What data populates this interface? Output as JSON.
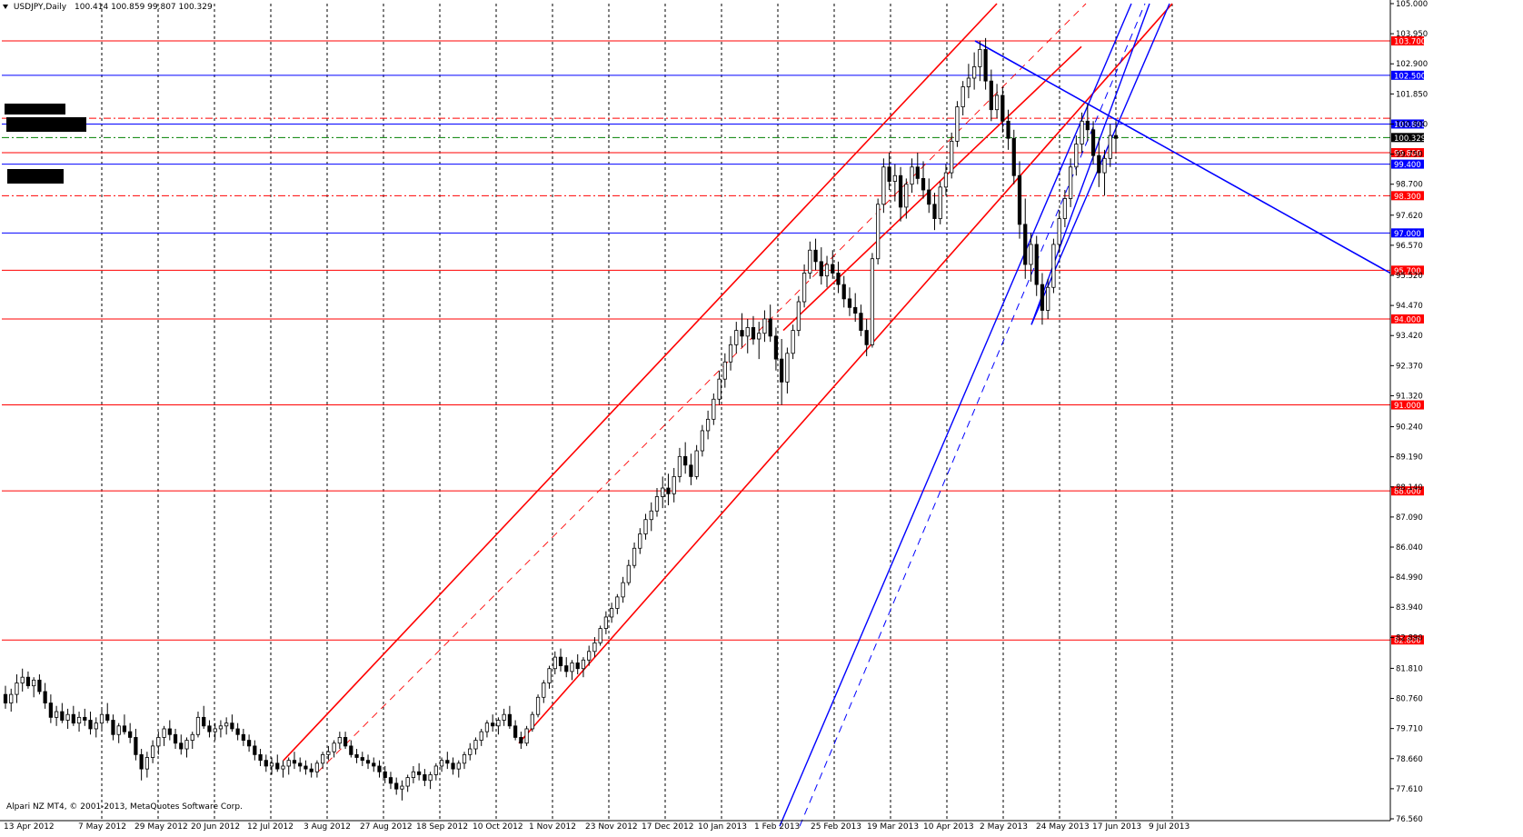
{
  "header": {
    "symbol_timeframe": "USDJPY,Daily",
    "ohlc": "100.414 100.859 99.807 100.329"
  },
  "copyright": "Alpari NZ MT4, © 2001-2013, MetaQuotes Software Corp.",
  "colors": {
    "background": "#ffffff",
    "red": "#ff0000",
    "blue": "#0000ff",
    "candle": "#000000",
    "grid": "#000000"
  },
  "chart_data": {
    "type": "candlestick",
    "symbol": "USDJPY",
    "timeframe": "Daily",
    "ylim": [
      76.56,
      105.0
    ],
    "y_tick_labels": [
      "105.000",
      "103.950",
      "102.900",
      "101.850",
      "100.800",
      "99.750",
      "98.700",
      "97.620",
      "96.570",
      "95.520",
      "94.470",
      "93.420",
      "92.370",
      "91.320",
      "90.240",
      "89.190",
      "88.140",
      "87.090",
      "86.040",
      "84.990",
      "83.940",
      "82.890",
      "81.810",
      "80.760",
      "79.710",
      "78.660",
      "77.610",
      "76.560"
    ],
    "x_tick_labels": [
      "13 Apr 2012",
      "7 May 2012",
      "29 May 2012",
      "20 Jun 2012",
      "12 Jul 2012",
      "3 Aug 2012",
      "27 Aug 2012",
      "18 Sep 2012",
      "10 Oct 2012",
      "1 Nov 2012",
      "23 Nov 2012",
      "17 Dec 2012",
      "10 Jan 2013",
      "1 Feb 2013",
      "25 Feb 2013",
      "19 Mar 2013",
      "10 Apr 2013",
      "2 May 2013",
      "24 May 2013",
      "17 Jun 2013",
      "9 Jul 2013"
    ],
    "current_price": 100.329,
    "horizontal_levels": [
      {
        "price": 103.7,
        "label": "103.700",
        "color": "red",
        "style": "solid"
      },
      {
        "price": 102.5,
        "label": "102.500",
        "color": "blue",
        "style": "solid"
      },
      {
        "price": 100.8,
        "label": "100.800",
        "color": "blue",
        "style": "solid"
      },
      {
        "price": 99.8,
        "label": "99.800",
        "color": "red",
        "style": "solid"
      },
      {
        "price": 99.4,
        "label": "99.400",
        "color": "blue",
        "style": "solid"
      },
      {
        "price": 98.3,
        "label": "98.300",
        "color": "red",
        "style": "dashdot"
      },
      {
        "price": 97.0,
        "label": "97.000",
        "color": "blue",
        "style": "solid"
      },
      {
        "price": 95.7,
        "label": "95.700",
        "color": "red",
        "style": "solid"
      },
      {
        "price": 94.0,
        "label": "94.000",
        "color": "red",
        "style": "solid"
      },
      {
        "price": 91.0,
        "label": "91.000",
        "color": "red",
        "style": "solid"
      },
      {
        "price": 88.0,
        "label": "88.000",
        "color": "red",
        "style": "solid"
      },
      {
        "price": 82.8,
        "label": "82.800",
        "color": "red",
        "style": "solid"
      }
    ],
    "unlabeled_levels": [
      {
        "price": 101.0,
        "color": "red",
        "style": "dashdot"
      },
      {
        "price": 100.329,
        "color": "green",
        "style": "dashdot"
      }
    ],
    "trend_lines": [
      {
        "color": "red",
        "style": "solid",
        "from": [
          0.0,
          77.0
        ],
        "to": [
          1.0,
          104.0
        ]
      },
      {
        "color": "red",
        "style": "solid",
        "from": [
          0.0,
          78.5
        ],
        "to": [
          1.0,
          105.0
        ]
      }
    ],
    "candles_ohlc": [
      [
        80.9,
        81.2,
        80.4,
        80.6
      ],
      [
        80.6,
        81.1,
        80.3,
        80.9
      ],
      [
        80.9,
        81.6,
        80.6,
        81.3
      ],
      [
        81.3,
        81.8,
        81.0,
        81.5
      ],
      [
        81.5,
        81.7,
        81.1,
        81.2
      ],
      [
        81.2,
        81.5,
        80.8,
        81.4
      ],
      [
        81.4,
        81.6,
        80.9,
        81.0
      ],
      [
        81.0,
        81.3,
        80.4,
        80.6
      ],
      [
        80.6,
        80.9,
        79.9,
        80.1
      ],
      [
        80.1,
        80.5,
        79.8,
        80.3
      ],
      [
        80.3,
        80.6,
        79.9,
        80.0
      ],
      [
        80.0,
        80.4,
        79.7,
        80.2
      ],
      [
        80.2,
        80.5,
        79.8,
        79.9
      ],
      [
        79.9,
        80.3,
        79.6,
        80.1
      ],
      [
        80.1,
        80.4,
        79.8,
        80.0
      ],
      [
        80.0,
        80.3,
        79.5,
        79.7
      ],
      [
        79.7,
        80.1,
        79.4,
        79.9
      ],
      [
        79.9,
        80.4,
        79.7,
        80.2
      ],
      [
        80.2,
        80.6,
        79.9,
        80.0
      ],
      [
        80.0,
        80.2,
        79.3,
        79.5
      ],
      [
        79.5,
        79.9,
        79.2,
        79.8
      ],
      [
        79.8,
        80.2,
        79.5,
        79.6
      ],
      [
        79.6,
        79.9,
        79.2,
        79.4
      ],
      [
        79.4,
        79.7,
        78.6,
        78.8
      ],
      [
        78.8,
        79.0,
        77.9,
        78.3
      ],
      [
        78.3,
        78.9,
        78.0,
        78.7
      ],
      [
        78.7,
        79.3,
        78.5,
        79.1
      ],
      [
        79.1,
        79.6,
        78.8,
        79.4
      ],
      [
        79.4,
        79.8,
        79.1,
        79.7
      ],
      [
        79.7,
        80.0,
        79.3,
        79.5
      ],
      [
        79.5,
        79.7,
        79.0,
        79.2
      ],
      [
        79.2,
        79.5,
        78.8,
        79.0
      ],
      [
        79.0,
        79.4,
        78.7,
        79.3
      ],
      [
        79.3,
        79.6,
        79.0,
        79.5
      ],
      [
        79.5,
        80.3,
        79.4,
        80.1
      ],
      [
        80.1,
        80.5,
        79.7,
        79.8
      ],
      [
        79.8,
        80.0,
        79.4,
        79.6
      ],
      [
        79.6,
        79.9,
        79.3,
        79.7
      ],
      [
        79.7,
        80.0,
        79.4,
        79.8
      ],
      [
        79.8,
        80.1,
        79.5,
        79.9
      ],
      [
        79.9,
        80.2,
        79.6,
        79.7
      ],
      [
        79.7,
        79.9,
        79.3,
        79.5
      ],
      [
        79.5,
        79.7,
        79.1,
        79.3
      ],
      [
        79.3,
        79.5,
        78.9,
        79.1
      ],
      [
        79.1,
        79.3,
        78.6,
        78.8
      ],
      [
        78.8,
        79.0,
        78.4,
        78.6
      ],
      [
        78.6,
        78.8,
        78.2,
        78.4
      ],
      [
        78.4,
        78.7,
        78.1,
        78.5
      ],
      [
        78.5,
        78.8,
        78.2,
        78.3
      ],
      [
        78.3,
        78.6,
        78.0,
        78.4
      ],
      [
        78.4,
        78.7,
        78.1,
        78.6
      ],
      [
        78.6,
        78.9,
        78.3,
        78.5
      ],
      [
        78.5,
        78.7,
        78.2,
        78.4
      ],
      [
        78.4,
        78.6,
        78.1,
        78.3
      ],
      [
        78.3,
        78.5,
        78.0,
        78.2
      ],
      [
        78.2,
        78.6,
        78.0,
        78.5
      ],
      [
        78.5,
        78.9,
        78.3,
        78.8
      ],
      [
        78.8,
        79.1,
        78.6,
        78.9
      ],
      [
        78.9,
        79.3,
        78.7,
        79.2
      ],
      [
        79.2,
        79.6,
        79.0,
        79.4
      ],
      [
        79.4,
        79.6,
        79.0,
        79.1
      ],
      [
        79.1,
        79.3,
        78.7,
        78.8
      ],
      [
        78.8,
        79.0,
        78.5,
        78.7
      ],
      [
        78.7,
        78.9,
        78.4,
        78.6
      ],
      [
        78.6,
        78.8,
        78.3,
        78.5
      ],
      [
        78.5,
        78.7,
        78.2,
        78.4
      ],
      [
        78.4,
        78.6,
        78.0,
        78.2
      ],
      [
        78.2,
        78.4,
        77.8,
        78.0
      ],
      [
        78.0,
        78.2,
        77.6,
        77.8
      ],
      [
        77.8,
        78.0,
        77.4,
        77.6
      ],
      [
        77.6,
        77.9,
        77.2,
        77.7
      ],
      [
        77.7,
        78.1,
        77.5,
        78.0
      ],
      [
        78.0,
        78.4,
        77.8,
        78.2
      ],
      [
        78.2,
        78.5,
        77.9,
        78.1
      ],
      [
        78.1,
        78.3,
        77.7,
        77.9
      ],
      [
        77.9,
        78.2,
        77.6,
        78.1
      ],
      [
        78.1,
        78.5,
        77.9,
        78.4
      ],
      [
        78.4,
        78.7,
        78.2,
        78.6
      ],
      [
        78.6,
        78.9,
        78.3,
        78.5
      ],
      [
        78.5,
        78.7,
        78.1,
        78.3
      ],
      [
        78.3,
        78.6,
        78.0,
        78.5
      ],
      [
        78.5,
        78.9,
        78.3,
        78.8
      ],
      [
        78.8,
        79.2,
        78.6,
        79.0
      ],
      [
        79.0,
        79.4,
        78.8,
        79.3
      ],
      [
        79.3,
        79.7,
        79.1,
        79.6
      ],
      [
        79.6,
        80.0,
        79.4,
        79.9
      ],
      [
        79.9,
        80.2,
        79.6,
        79.8
      ],
      [
        79.8,
        80.1,
        79.5,
        80.0
      ],
      [
        80.0,
        80.4,
        79.8,
        80.2
      ],
      [
        80.2,
        80.5,
        79.7,
        79.8
      ],
      [
        79.8,
        80.0,
        79.3,
        79.4
      ],
      [
        79.4,
        79.6,
        79.0,
        79.2
      ],
      [
        79.2,
        79.8,
        79.1,
        79.7
      ],
      [
        79.7,
        80.3,
        79.6,
        80.2
      ],
      [
        80.2,
        80.9,
        80.1,
        80.8
      ],
      [
        80.8,
        81.4,
        80.6,
        81.3
      ],
      [
        81.3,
        81.9,
        81.1,
        81.8
      ],
      [
        81.8,
        82.4,
        81.6,
        82.2
      ],
      [
        82.2,
        82.5,
        81.7,
        81.9
      ],
      [
        81.9,
        82.2,
        81.5,
        81.7
      ],
      [
        81.7,
        82.1,
        81.4,
        82.0
      ],
      [
        82.0,
        82.3,
        81.6,
        81.8
      ],
      [
        81.8,
        82.2,
        81.5,
        82.1
      ],
      [
        82.1,
        82.6,
        81.9,
        82.4
      ],
      [
        82.4,
        82.9,
        82.2,
        82.7
      ],
      [
        82.7,
        83.3,
        82.6,
        83.2
      ],
      [
        83.2,
        83.8,
        83.0,
        83.6
      ],
      [
        83.6,
        84.1,
        83.4,
        83.9
      ],
      [
        83.9,
        84.4,
        83.7,
        84.3
      ],
      [
        84.3,
        85.0,
        84.1,
        84.8
      ],
      [
        84.8,
        85.6,
        84.7,
        85.4
      ],
      [
        85.4,
        86.2,
        85.3,
        86.0
      ],
      [
        86.0,
        86.7,
        85.8,
        86.5
      ],
      [
        86.5,
        87.2,
        86.3,
        87.0
      ],
      [
        87.0,
        87.6,
        86.6,
        87.3
      ],
      [
        87.3,
        88.1,
        87.1,
        87.8
      ],
      [
        87.8,
        88.5,
        87.4,
        88.1
      ],
      [
        88.1,
        88.6,
        87.5,
        87.9
      ],
      [
        87.9,
        88.8,
        87.6,
        88.5
      ],
      [
        88.5,
        89.5,
        88.3,
        89.2
      ],
      [
        89.2,
        89.7,
        88.6,
        88.9
      ],
      [
        88.9,
        89.3,
        88.2,
        88.5
      ],
      [
        88.5,
        89.6,
        88.4,
        89.4
      ],
      [
        89.4,
        90.3,
        89.2,
        90.1
      ],
      [
        90.1,
        90.8,
        89.8,
        90.5
      ],
      [
        90.5,
        91.4,
        90.3,
        91.2
      ],
      [
        91.2,
        92.2,
        91.0,
        91.9
      ],
      [
        91.9,
        92.8,
        91.6,
        92.5
      ],
      [
        92.5,
        93.4,
        92.2,
        93.1
      ],
      [
        93.1,
        93.9,
        92.8,
        93.6
      ],
      [
        93.6,
        94.2,
        93.0,
        93.4
      ],
      [
        93.4,
        94.0,
        92.8,
        93.7
      ],
      [
        93.7,
        94.1,
        93.1,
        93.3
      ],
      [
        93.3,
        93.9,
        92.6,
        93.5
      ],
      [
        93.5,
        94.3,
        93.2,
        94.0
      ],
      [
        94.0,
        94.5,
        93.2,
        93.4
      ],
      [
        93.4,
        93.7,
        92.2,
        92.6
      ],
      [
        92.6,
        93.3,
        91.0,
        91.8
      ],
      [
        91.8,
        93.0,
        91.4,
        92.8
      ],
      [
        92.8,
        93.8,
        92.6,
        93.6
      ],
      [
        93.6,
        94.8,
        93.4,
        94.6
      ],
      [
        94.6,
        95.9,
        94.4,
        95.6
      ],
      [
        95.6,
        96.7,
        95.4,
        96.4
      ],
      [
        96.4,
        96.8,
        95.7,
        96.0
      ],
      [
        96.0,
        96.5,
        95.2,
        95.5
      ],
      [
        95.5,
        96.2,
        95.1,
        95.9
      ],
      [
        95.9,
        96.4,
        95.4,
        95.6
      ],
      [
        95.6,
        96.0,
        94.9,
        95.2
      ],
      [
        95.2,
        95.5,
        94.4,
        94.7
      ],
      [
        94.7,
        95.1,
        94.1,
        94.4
      ],
      [
        94.4,
        94.9,
        93.9,
        94.2
      ],
      [
        94.2,
        94.5,
        93.4,
        93.6
      ],
      [
        93.6,
        94.0,
        92.7,
        93.1
      ],
      [
        93.1,
        96.3,
        93.0,
        96.1
      ],
      [
        96.1,
        98.2,
        95.9,
        98.0
      ],
      [
        98.0,
        99.6,
        97.7,
        99.3
      ],
      [
        99.3,
        99.8,
        98.5,
        98.8
      ],
      [
        98.8,
        99.4,
        98.1,
        99.0
      ],
      [
        99.0,
        99.3,
        97.4,
        97.9
      ],
      [
        97.9,
        98.9,
        97.5,
        98.7
      ],
      [
        98.7,
        99.6,
        98.4,
        99.3
      ],
      [
        99.3,
        99.8,
        98.7,
        98.9
      ],
      [
        98.9,
        99.5,
        98.2,
        98.5
      ],
      [
        98.5,
        98.9,
        97.7,
        98.0
      ],
      [
        98.0,
        98.4,
        97.1,
        97.5
      ],
      [
        97.5,
        98.8,
        97.3,
        98.6
      ],
      [
        98.6,
        99.4,
        98.3,
        99.1
      ],
      [
        99.1,
        100.5,
        98.9,
        100.2
      ],
      [
        100.2,
        101.6,
        100.0,
        101.4
      ],
      [
        101.4,
        102.3,
        101.1,
        102.1
      ],
      [
        102.1,
        102.9,
        101.7,
        102.4
      ],
      [
        102.4,
        103.3,
        102.0,
        102.8
      ],
      [
        102.8,
        103.7,
        102.3,
        103.4
      ],
      [
        103.4,
        103.8,
        102.0,
        102.3
      ],
      [
        102.3,
        102.7,
        100.9,
        101.3
      ],
      [
        101.3,
        102.2,
        101.0,
        101.8
      ],
      [
        101.8,
        102.1,
        100.5,
        100.9
      ],
      [
        100.9,
        101.3,
        99.9,
        100.3
      ],
      [
        100.3,
        100.6,
        98.7,
        99.0
      ],
      [
        99.0,
        99.5,
        96.8,
        97.3
      ],
      [
        97.3,
        98.2,
        95.4,
        95.9
      ],
      [
        95.9,
        97.0,
        95.3,
        96.6
      ],
      [
        96.6,
        96.9,
        94.8,
        95.2
      ],
      [
        95.2,
        95.6,
        93.8,
        94.3
      ],
      [
        94.3,
        95.4,
        94.0,
        95.1
      ],
      [
        95.1,
        96.8,
        94.9,
        96.6
      ],
      [
        96.6,
        97.8,
        96.3,
        97.5
      ],
      [
        97.5,
        98.5,
        97.2,
        98.2
      ],
      [
        98.2,
        99.6,
        97.9,
        99.3
      ],
      [
        99.3,
        100.4,
        99.0,
        100.1
      ],
      [
        100.1,
        101.2,
        99.8,
        100.9
      ],
      [
        100.9,
        101.5,
        100.2,
        100.6
      ],
      [
        100.6,
        100.9,
        99.4,
        99.7
      ],
      [
        99.7,
        100.3,
        98.6,
        99.1
      ],
      [
        99.1,
        99.9,
        98.3,
        99.6
      ],
      [
        99.6,
        100.8,
        99.3,
        100.4
      ],
      [
        100.4,
        100.9,
        99.8,
        100.3
      ]
    ]
  }
}
